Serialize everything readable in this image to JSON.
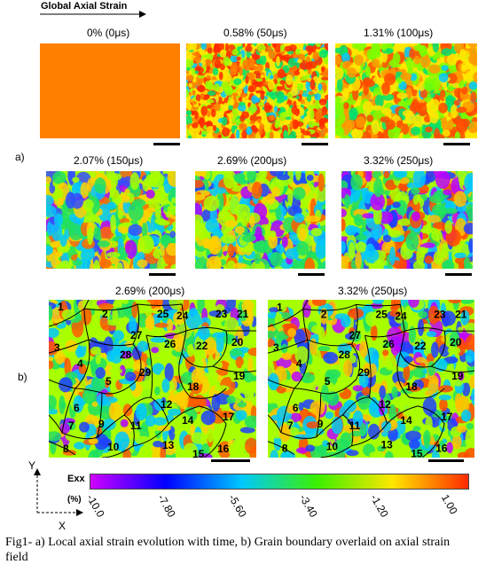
{
  "global_axial_strain_label": "Global Axial Strain",
  "part_a_label": "a)",
  "part_b_label": "b)",
  "row1": [
    {
      "title": "0% (0μs)"
    },
    {
      "title": "0.58% (50μs)"
    },
    {
      "title": "1.31% (100μs)"
    }
  ],
  "row2": [
    {
      "title": "2.07% (150μs)"
    },
    {
      "title": "2.69% (200μs)"
    },
    {
      "title": "3.32% (250μs)"
    }
  ],
  "row3": [
    {
      "title": "2.69% (200μs)"
    },
    {
      "title": "3.32% (250μs)"
    }
  ],
  "grain_numbers": [
    "1",
    "2",
    "3",
    "4",
    "5",
    "6",
    "7",
    "8",
    "9",
    "10",
    "11",
    "12",
    "13",
    "14",
    "15",
    "16",
    "17",
    "18",
    "19",
    "20",
    "21",
    "22",
    "23",
    "24",
    "25",
    "26",
    "27",
    "28",
    "29"
  ],
  "axes": {
    "y": "Y",
    "x": "X"
  },
  "colorbar": {
    "title": "Exx",
    "unit": "(%)",
    "ticks": [
      "-10.0",
      "-7.80",
      "-5.60",
      "-3.40",
      "-1.20",
      "1.00"
    ],
    "colors": [
      "#d100ff",
      "#0000ff",
      "#00c8ff",
      "#3cf000",
      "#ffe600",
      "#ff2a00"
    ]
  },
  "caption": "Fig1- a) Local axial strain evolution with time, b) Grain boundary overlaid on axial strain field"
}
